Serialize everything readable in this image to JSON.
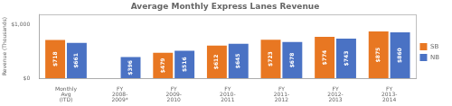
{
  "chart_data": {
    "type": "bar",
    "title": "Average Monthly Express Lanes Revenue",
    "ylabel": "Revenue (Thousands)",
    "categories": [
      "Monthly\nAvg\n(ITD)",
      "FY\n2008-\n2009*",
      "FY\n2009-\n2010",
      "FY\n2010-\n2011",
      "FY\n2011-\n2012",
      "FY\n2012-\n2013",
      "FY\n2013-\n2014"
    ],
    "series": [
      {
        "name": "SB",
        "color": "#E87722",
        "values": [
          718,
          null,
          479,
          612,
          723,
          774,
          875
        ],
        "value_labels": [
          "$718",
          null,
          "$479",
          "$612",
          "$723",
          "$774",
          "$875"
        ]
      },
      {
        "name": "NB",
        "color": "#4A72C4",
        "values": [
          661,
          396,
          516,
          645,
          678,
          743,
          860
        ],
        "value_labels": [
          "$661",
          "$396",
          "$516",
          "$645",
          "$678",
          "$743",
          "$860"
        ]
      }
    ],
    "ylim": [
      0,
      1200
    ],
    "yticks": [
      {
        "value": 0,
        "label": "$0"
      },
      {
        "value": 1000,
        "label": "$1,000"
      }
    ],
    "data_labels": true,
    "grid": false,
    "legend": "right"
  }
}
